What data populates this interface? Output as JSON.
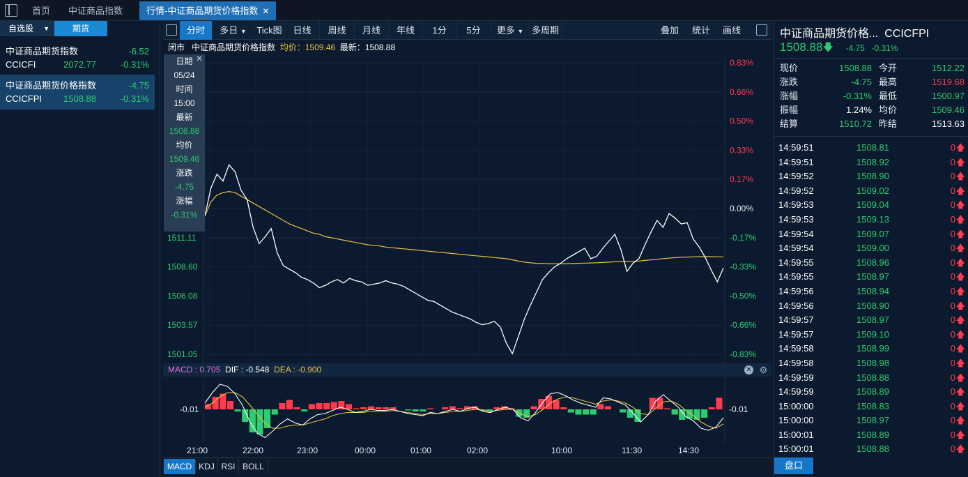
{
  "tabs": [
    {
      "label": "首页",
      "active": false
    },
    {
      "label": "中证商品指数",
      "active": false
    },
    {
      "label": "行情-中证商品期货价格指数",
      "active": true
    }
  ],
  "watchlist": {
    "tab_self": "自选股",
    "tab_futures": "期货",
    "items": [
      {
        "name": "中证商品期货指数",
        "change": "-6.52",
        "code": "CCICFI",
        "price": "2072.77",
        "pct": "-0.31%",
        "selected": false
      },
      {
        "name": "中证商品期货价格指数",
        "change": "-4.75",
        "code": "CCICFPI",
        "price": "1508.88",
        "pct": "-0.31%",
        "selected": true
      }
    ]
  },
  "toolbar": {
    "left": [
      "分时",
      "多日",
      "Tick图",
      "日线",
      "周线",
      "月线",
      "年线",
      "1分",
      "5分",
      "更多",
      "多周期"
    ],
    "right": [
      "叠加",
      "统计",
      "画线"
    ],
    "active": "分时"
  },
  "info": {
    "status": "闭市",
    "name": "中证商品期货价格指数",
    "avg_label": "均价：1509.46",
    "last_label": "最新：1508.88"
  },
  "tooltip": {
    "date_label": "日期",
    "date": "05/24",
    "time_label": "时间",
    "time": "15:00",
    "last_label": "最新",
    "last": "1508.88",
    "avg_label": "均价",
    "avg": "1509.46",
    "chg_label": "涨跌",
    "chg": "-4.75",
    "pct_label": "涨幅",
    "pct": "-0.31%"
  },
  "chart_data": {
    "type": "line",
    "prev_settle": 1513.63,
    "y_left_ticks": [
      "1511.11",
      "1508.60",
      "1506.08",
      "1503.57",
      "1501.05"
    ],
    "y_right_ticks": [
      "0.83%",
      "0.66%",
      "0.50%",
      "0.33%",
      "0.17%",
      "0.00%",
      "-0.17%",
      "-0.33%",
      "-0.50%",
      "-0.66%",
      "-0.83%"
    ],
    "x_ticks": [
      "21:00",
      "22:00",
      "23:00",
      "00:00",
      "01:00",
      "02:00",
      "10:00",
      "11:30",
      "14:30"
    ],
    "ylim": [
      1501.05,
      1526.21
    ],
    "series": [
      {
        "name": "最新",
        "color": "#ffffff",
        "values": [
          1513.0,
          1515.4,
          1516.6,
          1516.0,
          1517.4,
          1516.8,
          1515.2,
          1514.4,
          1512.0,
          1510.6,
          1511.2,
          1511.9,
          1509.8,
          1508.7,
          1508.4,
          1508.1,
          1507.7,
          1507.5,
          1507.2,
          1506.8,
          1507.0,
          1507.3,
          1507.5,
          1507.2,
          1507.6,
          1507.4,
          1507.3,
          1507.0,
          1507.1,
          1507.2,
          1507.4,
          1507.2,
          1507.1,
          1506.9,
          1506.6,
          1506.3,
          1506.0,
          1505.7,
          1505.6,
          1505.3,
          1505.0,
          1504.7,
          1504.5,
          1504.3,
          1504.1,
          1503.8,
          1503.6,
          1503.7,
          1503.9,
          1503.4,
          1502.0,
          1501.1,
          1502.6,
          1504.1,
          1505.3,
          1506.4,
          1507.5,
          1508.1,
          1508.6,
          1508.9,
          1509.3,
          1509.6,
          1509.9,
          1510.2,
          1509.3,
          1509.5,
          1510.2,
          1510.8,
          1511.4,
          1510.1,
          1508.2,
          1508.9,
          1509.3,
          1510.5,
          1511.6,
          1512.6,
          1512.0,
          1513.2,
          1512.8,
          1512.3,
          1512.4,
          1511.0,
          1510.3,
          1509.4,
          1508.3,
          1507.3,
          1508.5
        ]
      },
      {
        "name": "均价",
        "color": "#e8c046",
        "values": [
          1513.0,
          1514.2,
          1514.8,
          1515.0,
          1515.1,
          1515.0,
          1514.7,
          1514.4,
          1514.1,
          1513.8,
          1513.5,
          1513.2,
          1512.9,
          1512.6,
          1512.3,
          1512.1,
          1511.9,
          1511.7,
          1511.5,
          1511.4,
          1511.2,
          1511.1,
          1511.0,
          1510.9,
          1510.8,
          1510.7,
          1510.6,
          1510.5,
          1510.45,
          1510.4,
          1510.3,
          1510.25,
          1510.2,
          1510.15,
          1510.1,
          1510.05,
          1510.0,
          1509.95,
          1509.9,
          1509.85,
          1509.8,
          1509.75,
          1509.7,
          1509.65,
          1509.6,
          1509.55,
          1509.5,
          1509.45,
          1509.4,
          1509.35,
          1509.3,
          1509.2,
          1509.1,
          1509.0,
          1508.95,
          1508.9,
          1508.88,
          1508.87,
          1508.86,
          1508.86,
          1508.87,
          1508.88,
          1508.9,
          1508.92,
          1508.93,
          1508.95,
          1508.97,
          1509.0,
          1509.03,
          1509.05,
          1509.06,
          1509.07,
          1509.1,
          1509.15,
          1509.2,
          1509.25,
          1509.3,
          1509.35,
          1509.4,
          1509.42,
          1509.44,
          1509.46,
          1509.47,
          1509.48,
          1509.47,
          1509.46,
          1509.46
        ]
      }
    ]
  },
  "macd": {
    "macd_label": "MACD : 0.705",
    "dif_label": "DIF : -0.548",
    "dea_label": "DEA : -0.900",
    "zero_label": "-0.01",
    "dif": [
      0.6,
      1.6,
      2.4,
      2.2,
      1.5,
      0.4,
      -1.2,
      -2.3,
      -2.7,
      -2.1,
      -1.4,
      -0.9,
      -1.3,
      -1.5,
      -0.9,
      -0.5,
      -0.4,
      -0.1,
      0.2,
      0.0,
      -0.3,
      -0.2,
      0.0,
      -0.1,
      -0.1,
      0.0,
      -0.2,
      -0.4,
      -0.5,
      -0.6,
      -0.3,
      -0.4,
      -0.2,
      0.0,
      -0.2,
      0.1,
      0.2,
      -0.2,
      -0.3,
      0.0,
      0.2,
      0.0,
      -0.8,
      -1.1,
      -0.3,
      0.7,
      1.5,
      1.6,
      1.3,
      0.9,
      0.6,
      0.4,
      0.2,
      1.1,
      1.0,
      0.7,
      0.4,
      -0.4,
      -1.2,
      -0.5,
      0.8,
      1.4,
      0.8,
      0.2,
      -0.7,
      -1.1,
      -1.8,
      -2.0,
      -1.7,
      -0.8
    ],
    "dea": [
      0.2,
      0.6,
      1.2,
      1.6,
      1.6,
      1.2,
      0.4,
      -0.5,
      -1.3,
      -1.8,
      -1.8,
      -1.6,
      -1.5,
      -1.5,
      -1.3,
      -1.1,
      -0.9,
      -0.6,
      -0.4,
      -0.3,
      -0.3,
      -0.3,
      -0.2,
      -0.2,
      -0.2,
      -0.1,
      -0.2,
      -0.3,
      -0.4,
      -0.5,
      -0.4,
      -0.4,
      -0.3,
      -0.2,
      -0.2,
      -0.1,
      0.0,
      -0.1,
      -0.2,
      -0.1,
      0.0,
      0.0,
      -0.4,
      -0.7,
      -0.5,
      0.0,
      0.6,
      1.0,
      1.2,
      1.1,
      0.9,
      0.7,
      0.5,
      0.8,
      0.9,
      0.8,
      0.6,
      0.2,
      -0.4,
      -0.5,
      0.1,
      0.7,
      0.8,
      0.5,
      -0.1,
      -0.6,
      -1.2,
      -1.6,
      -1.8,
      -1.4
    ],
    "histogram": [
      0.5,
      1.2,
      1.5,
      0.8,
      -0.2,
      -1.2,
      -2.2,
      -2.4,
      -1.8,
      -0.5,
      0.6,
      0.9,
      0.2,
      -0.2,
      0.5,
      0.6,
      0.6,
      0.7,
      0.8,
      0.5,
      0.1,
      0.2,
      0.3,
      0.2,
      0.2,
      0.2,
      0.0,
      -0.1,
      -0.2,
      -0.2,
      0.1,
      0.0,
      0.2,
      0.3,
      0.1,
      0.3,
      0.3,
      -0.1,
      -0.2,
      0.2,
      0.3,
      0.1,
      -0.7,
      -0.8,
      0.3,
      1.0,
      1.3,
      0.9,
      0.2,
      -0.3,
      -0.5,
      -0.5,
      -0.5,
      0.5,
      0.3,
      0.0,
      -0.3,
      -0.8,
      -1.2,
      0.0,
      1.1,
      1.1,
      0.1,
      -0.5,
      -1.0,
      -0.9,
      -1.0,
      -0.8,
      0.2,
      1.1
    ]
  },
  "indicators": [
    "MACD",
    "KDJ",
    "RSI",
    "BOLL"
  ],
  "quote": {
    "title": "中证商品期货价格...",
    "code": "CCICFPI",
    "price": "1508.88",
    "change": "-4.75",
    "pct": "-0.31%",
    "rows": [
      {
        "l1": "现价",
        "v1": "1508.88",
        "c1": "down",
        "l2": "今开",
        "v2": "1512.22",
        "c2": "down"
      },
      {
        "l1": "涨跌",
        "v1": "-4.75",
        "c1": "down",
        "l2": "最高",
        "v2": "1519.68",
        "c2": "up"
      },
      {
        "l1": "涨幅",
        "v1": "-0.31%",
        "c1": "down",
        "l2": "最低",
        "v2": "1500.97",
        "c2": "down"
      },
      {
        "l1": "振幅",
        "v1": "1.24%",
        "c1": "white",
        "l2": "均价",
        "v2": "1509.46",
        "c2": "down"
      },
      {
        "l1": "结算",
        "v1": "1510.72",
        "c1": "down",
        "l2": "昨结",
        "v2": "1513.63",
        "c2": "white"
      }
    ],
    "ticks": [
      {
        "t": "14:59:51",
        "p": "1508.81",
        "v": "0"
      },
      {
        "t": "14:59:51",
        "p": "1508.92",
        "v": "0"
      },
      {
        "t": "14:59:52",
        "p": "1508.90",
        "v": "0"
      },
      {
        "t": "14:59:52",
        "p": "1509.02",
        "v": "0"
      },
      {
        "t": "14:59:53",
        "p": "1509.04",
        "v": "0"
      },
      {
        "t": "14:59:53",
        "p": "1509.13",
        "v": "0"
      },
      {
        "t": "14:59:54",
        "p": "1509.07",
        "v": "0"
      },
      {
        "t": "14:59:54",
        "p": "1509.00",
        "v": "0"
      },
      {
        "t": "14:59:55",
        "p": "1508.96",
        "v": "0"
      },
      {
        "t": "14:59:55",
        "p": "1508.97",
        "v": "0"
      },
      {
        "t": "14:59:56",
        "p": "1508.94",
        "v": "0"
      },
      {
        "t": "14:59:56",
        "p": "1508.90",
        "v": "0"
      },
      {
        "t": "14:59:57",
        "p": "1508.97",
        "v": "0"
      },
      {
        "t": "14:59:57",
        "p": "1509.10",
        "v": "0"
      },
      {
        "t": "14:59:58",
        "p": "1508.99",
        "v": "0"
      },
      {
        "t": "14:59:58",
        "p": "1508.98",
        "v": "0"
      },
      {
        "t": "14:59:59",
        "p": "1508.88",
        "v": "0"
      },
      {
        "t": "14:59:59",
        "p": "1508.89",
        "v": "0"
      },
      {
        "t": "15:00:00",
        "p": "1508.83",
        "v": "0"
      },
      {
        "t": "15:00:00",
        "p": "1508.97",
        "v": "0"
      },
      {
        "t": "15:00:01",
        "p": "1508.89",
        "v": "0"
      },
      {
        "t": "15:00:01",
        "p": "1508.88",
        "v": "0"
      }
    ],
    "pankou": "盘口"
  },
  "colors": {
    "up": "#ff3b4e",
    "down": "#2ecc71",
    "avg": "#e8c046",
    "accent": "#1677c9",
    "macd": "#e06ee0"
  }
}
